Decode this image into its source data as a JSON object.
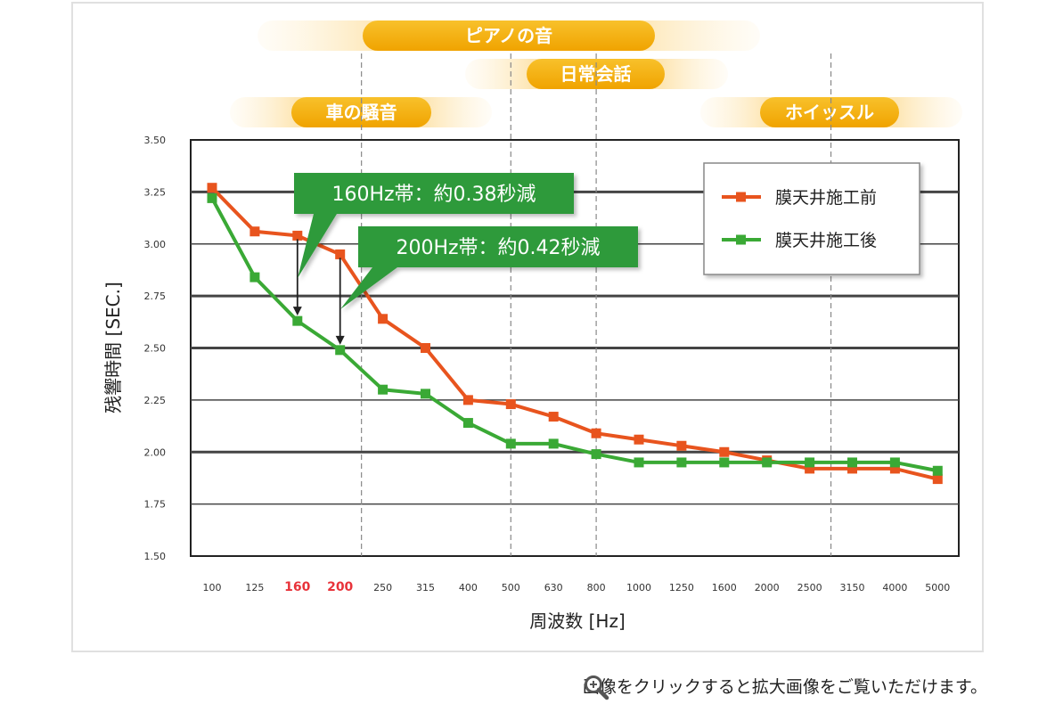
{
  "chart_data": {
    "type": "line",
    "ylabel": "残響時間 [SEC.]",
    "xlabel": "周波数 [Hz]",
    "ylim": [
      1.5,
      3.5
    ],
    "yticks": [
      "1.50",
      "1.75",
      "2.00",
      "2.25",
      "2.50",
      "2.75",
      "3.00",
      "3.25",
      "3.50"
    ],
    "categories": [
      "100",
      "125",
      "160",
      "200",
      "250",
      "315",
      "400",
      "500",
      "630",
      "800",
      "1000",
      "1250",
      "1600",
      "2000",
      "2500",
      "3150",
      "4000",
      "5000"
    ],
    "highlighted_categories": [
      "160",
      "200"
    ],
    "series": [
      {
        "name": "膜天井施工前",
        "color": "#e8541e",
        "values": [
          3.27,
          3.06,
          3.04,
          2.95,
          2.64,
          2.5,
          2.25,
          2.23,
          2.17,
          2.09,
          2.06,
          2.03,
          2.0,
          1.96,
          1.92,
          1.92,
          1.92,
          1.87
        ]
      },
      {
        "name": "膜天井施工後",
        "color": "#3aa935",
        "values": [
          3.22,
          2.84,
          2.63,
          2.49,
          2.3,
          2.28,
          2.14,
          2.04,
          2.04,
          1.99,
          1.95,
          1.95,
          1.95,
          1.95,
          1.95,
          1.95,
          1.95,
          1.91
        ]
      }
    ],
    "legend": "top-right",
    "grid": true,
    "annotations": [
      {
        "text": "160Hz帯：約0.38秒減",
        "category": "160"
      },
      {
        "text": "200Hz帯：約0.42秒減",
        "category": "200"
      }
    ],
    "bands": [
      {
        "label": "ピアノの音"
      },
      {
        "label": "日常会話"
      },
      {
        "label": "車の騒音"
      },
      {
        "label": "ホイッスル"
      }
    ]
  },
  "caption": {
    "icon": "magnifier-icon",
    "text": "画像をクリックすると拡大画像をご覧いただけます。"
  }
}
